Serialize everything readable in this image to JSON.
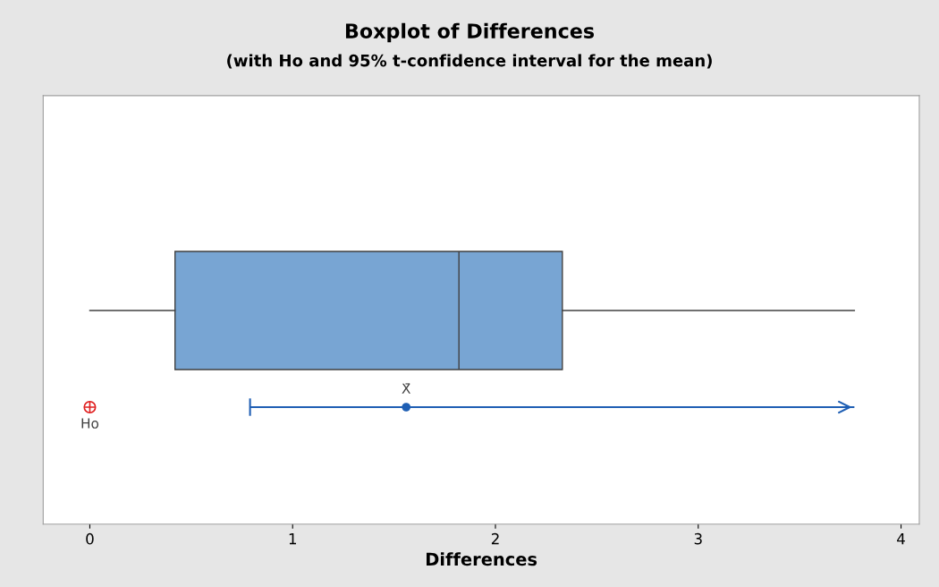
{
  "chart_data": {
    "type": "box",
    "orientation": "horizontal",
    "title": "Boxplot of Differences",
    "subtitle": "(with Ho and 95% t-confidence interval for the mean)",
    "xlabel": "Differences",
    "categories": [
      null
    ],
    "xlim": [
      -0.23,
      4.09
    ],
    "xticks": [
      0,
      1,
      2,
      3,
      4
    ],
    "grid": false,
    "series": [
      {
        "color": "#78a5d3",
        "boxes": [
          {
            "low": 0,
            "q1": 0.42,
            "median": 1.82,
            "q3": 2.33,
            "high": 3.77
          }
        ]
      },
      {
        "type": "scatter",
        "name": "X̄",
        "color": "#1f5fb4",
        "values": [
          1.56
        ],
        "errors": [
          [
            0.79,
            3.77
          ]
        ]
      },
      {
        "type": "scatter",
        "name": "Ho",
        "color": "#e02020",
        "values": [
          0
        ]
      }
    ]
  }
}
